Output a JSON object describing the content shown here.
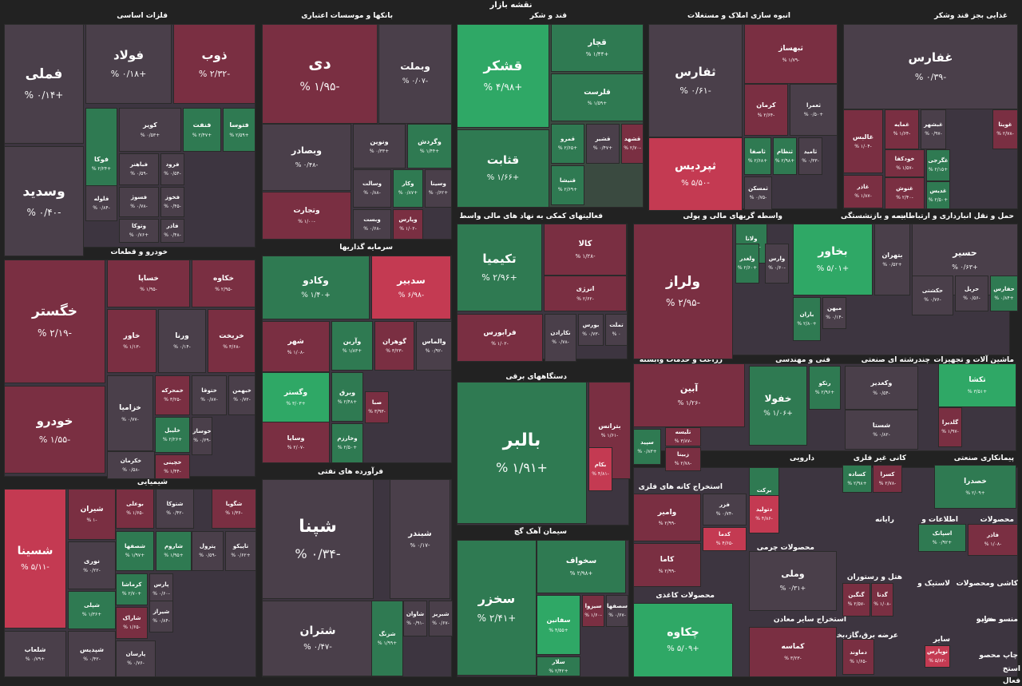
{
  "title": "نقشه بازار",
  "colors": {
    "up_strong": "#2fa866",
    "up": "#2f7a52",
    "neutral": "#4a3f4a",
    "down": "#7a2f42",
    "down_strong": "#c43a52"
  },
  "sectors": [
    "فلزات اساسی",
    "بانکها و موسسات اعتباری",
    "قند و شکر",
    "انبوه سازی املاک و مستغلات",
    "غذایی بجز قند وشکر",
    "خودرو و قطعات",
    "سرمایه گذاریها",
    "فعالیتهای کمکی به نهاد های مالی واسط",
    "واسطه گریهای مالی و پولی",
    "بیمه و بازنشستگی",
    "حمل و نقل انبارداری و ارتباطات",
    "دستگاههای برقی",
    "زراعت و خدمات وابسته",
    "فنی و مهندسی",
    "چندرشته ای صنعتی",
    "ماشین آلات و تجهیزات",
    "شیمیایی",
    "فرآورده های نفتی",
    "سیمان آهک گچ",
    "استخراج کانه های فلزی",
    "دارویی",
    "کانی غیر فلزی",
    "پیمانکاری صنعتی",
    "رایانه",
    "اطلاعات و",
    "محصولات",
    "محصولات چرمی",
    "هتل و رستوران",
    "لاستیک و",
    "محصولات",
    "کاشی و",
    "محصولات کاغذی",
    "استخراج سایر معادن",
    "عرضه برق،گاز،بخار و آب",
    "منسو مخابر",
    "خرده",
    "سایر",
    "چاپ محصو",
    "استخ",
    "فعال"
  ],
  "tiles": [
    {
      "name": "فملی",
      "change": "+۰/۱۴ %"
    },
    {
      "name": "وسدید",
      "change": "-۰/۴۰ %"
    },
    {
      "name": "فولاد",
      "change": "+۰/۱۸ %"
    },
    {
      "name": "ذوب",
      "change": "-۲/۳۲ %"
    },
    {
      "name": "فوکا",
      "change": "+۲/۲۴ %"
    },
    {
      "name": "کویر",
      "change": "+۰/۵۳ %"
    },
    {
      "name": "فنفت",
      "change": "+۲/۴۷ %"
    },
    {
      "name": "فتوسا",
      "change": "+۲/۵۹ %"
    },
    {
      "name": "فباهنر",
      "change": "-۰/۵۹ %"
    },
    {
      "name": "فرود",
      "change": "-۰/۵۴ %"
    },
    {
      "name": "فلوله",
      "change": "-۰/۸۴ %"
    },
    {
      "name": "فسوژ",
      "change": "-۰/۷۸ %"
    },
    {
      "name": "فخوز",
      "change": "-۰/۴۵ %"
    },
    {
      "name": "وتوکا",
      "change": "+۰/۷۶ %"
    },
    {
      "name": "فاذر",
      "change": "-۰/۴۸ %"
    },
    {
      "name": "دی",
      "change": "-۱/۹۵ %"
    },
    {
      "name": "وبملت",
      "change": "-۰/۰۷ %"
    },
    {
      "name": "وبصادر",
      "change": "-۰/۴۸ %"
    },
    {
      "name": "ونوین",
      "change": "+۰/۳۳ %"
    },
    {
      "name": "وگردش",
      "change": "+۱/۴۴ %"
    },
    {
      "name": "وتجارت",
      "change": "-۱/۰۰ %"
    },
    {
      "name": "وسالت",
      "change": "-۰/۸۸ %"
    },
    {
      "name": "وکار",
      "change": "+۰/۸۷ %"
    },
    {
      "name": "وسینا",
      "change": "+۰/۶۲ %"
    },
    {
      "name": "وبست",
      "change": "-۰/۶۸ %"
    },
    {
      "name": "وپارس",
      "change": "-۱/۰۲ %"
    },
    {
      "name": "قشکر",
      "change": "+۴/۹۸ %"
    },
    {
      "name": "قثابت",
      "change": "+۱/۶۶ %"
    },
    {
      "name": "قچار",
      "change": "+۱/۴۴ %"
    },
    {
      "name": "قلرست",
      "change": "+۱/۵۹ %"
    },
    {
      "name": "قمرو",
      "change": "+۲/۶۵ %"
    },
    {
      "name": "قشیر",
      "change": "+۰/۴۷ %"
    },
    {
      "name": "قشهد",
      "change": "-۲/۷۰ %"
    },
    {
      "name": "قنیشا",
      "change": "+۲/۶۹ %"
    },
    {
      "name": "ثفارس",
      "change": "-۰/۶۱ %"
    },
    {
      "name": "ثبهساز",
      "change": "-۱/۷۹ %"
    },
    {
      "name": "کرمان",
      "change": "-۲/۶۴ %"
    },
    {
      "name": "ثعمرا",
      "change": "+۰/۵۰ %"
    },
    {
      "name": "ثپردیس",
      "change": "-۵/۵۰ %"
    },
    {
      "name": "ثاصفا",
      "change": "+۲/۶۸ %"
    },
    {
      "name": "ثنظام",
      "change": "+۲/۹۸ %"
    },
    {
      "name": "ثامید",
      "change": "-۰/۳۳ %"
    },
    {
      "name": "ثمسکن",
      "change": "-۰/۷۵ %"
    },
    {
      "name": "غفارس",
      "change": "-۰/۳۹ %"
    },
    {
      "name": "غدانه",
      "change": "-۳/۰۱ %"
    },
    {
      "name": "غمایه",
      "change": "-۱/۶۴ %"
    },
    {
      "name": "غبشهر",
      "change": "-۰/۹۷ %"
    },
    {
      "name": "غویتا",
      "change": "-۲/۷۸ %"
    },
    {
      "name": "غالبس",
      "change": "-۱/۰۴ %"
    },
    {
      "name": "خودکفا",
      "change": "-۱/۵۷ %"
    },
    {
      "name": "غگرجی",
      "change": "+۲/۱۵ %"
    },
    {
      "name": "غاذر",
      "change": "-۱/۸۷ %"
    },
    {
      "name": "غنوش",
      "change": "-۲/۴۰ %"
    },
    {
      "name": "غدیس",
      "change": "+۲/۵۰ %"
    },
    {
      "name": "خگستر",
      "change": "-۲/۱۹ %"
    },
    {
      "name": "خودرو",
      "change": "-۱/۵۵ %"
    },
    {
      "name": "خساپا",
      "change": "-۱/۹۵ %"
    },
    {
      "name": "خکاوه",
      "change": "-۲/۹۵ %"
    },
    {
      "name": "خاور",
      "change": "-۱/۱۳ %"
    },
    {
      "name": "ورنا",
      "change": "-۰/۱۴ %"
    },
    {
      "name": "خریخت",
      "change": "-۳/۶۸ %"
    },
    {
      "name": "خزامیا",
      "change": "-۰/۷۷ %"
    },
    {
      "name": "خمحرکه",
      "change": "-۳/۲۵ %"
    },
    {
      "name": "ختوقا",
      "change": "-۰/۸۷ %"
    },
    {
      "name": "خبهمن",
      "change": "-۰/۷۲ %"
    },
    {
      "name": "خلیبل",
      "change": "+۲/۲۶ %"
    },
    {
      "name": "خکرمان",
      "change": "-۰/۵۸ %"
    },
    {
      "name": "خچینی",
      "change": "-۱/۴۴ %"
    },
    {
      "name": "خوساز",
      "change": "-۰/۶۹ %"
    },
    {
      "name": "وکادو",
      "change": "+۱/۴۰ %"
    },
    {
      "name": "سدبیر",
      "change": "-۶/۹۸ %"
    },
    {
      "name": "شهر",
      "change": "-۱/۰۸ %"
    },
    {
      "name": "وآرین",
      "change": "+۱/۸۳ %"
    },
    {
      "name": "گوهران",
      "change": "-۳/۲۳ %"
    },
    {
      "name": "والماس",
      "change": "-۰/۹۲ %"
    },
    {
      "name": "وگستر",
      "change": "+۳/۰۳ %"
    },
    {
      "name": "وبرق",
      "change": "+۲/۴۸ %"
    },
    {
      "name": "صبا",
      "change": "-۳/۹۳ %"
    },
    {
      "name": "وخارزم",
      "change": "+۲/۵۰ %"
    },
    {
      "name": "وسایا",
      "change": "-۲/۰۷ %"
    },
    {
      "name": "تکیمیا",
      "change": "+۲/۹۶ %"
    },
    {
      "name": "کالا",
      "change": "-۱/۲۸ %"
    },
    {
      "name": "انرژی",
      "change": "-۲/۶۲ %"
    },
    {
      "name": "فرابورس",
      "change": "-۱/۰۲ %"
    },
    {
      "name": "نکارادن",
      "change": "-۰/۷۸ %"
    },
    {
      "name": "بورس",
      "change": "-۰/۷۳ %"
    },
    {
      "name": "تملت",
      "change": "۰ %"
    },
    {
      "name": "ولراز",
      "change": "-۲/۹۵ %"
    },
    {
      "name": "ولانا",
      "change": "+۲/۱۷ %"
    },
    {
      "name": "ولغدر",
      "change": "+۲/۶۰ %"
    },
    {
      "name": "وارس",
      "change": "-۰/۶۰ %"
    },
    {
      "name": "بخاور",
      "change": "+۵/۰۱ %"
    },
    {
      "name": "بتهران",
      "change": "+۰/۵۲ %"
    },
    {
      "name": "باران",
      "change": "+۲/۸۰ %"
    },
    {
      "name": "میهن",
      "change": "-۰/۱۴ %"
    },
    {
      "name": "حسیر",
      "change": "+۰/۶۳ %"
    },
    {
      "name": "حکشتی",
      "change": "-۰/۷۶ %"
    },
    {
      "name": "حریل",
      "change": "-۰/۵۶ %"
    },
    {
      "name": "حفارس",
      "change": "+۰/۸۴ %"
    },
    {
      "name": "بالبر",
      "change": "+۱/۹۱ %"
    },
    {
      "name": "بترانس",
      "change": "-۱/۶۱ %"
    },
    {
      "name": "بکام",
      "change": "-۴/۸۱ %"
    },
    {
      "name": "آبین",
      "change": "-۱/۲۶ %"
    },
    {
      "name": "تلیسه",
      "change": "-۳/۸۷ %"
    },
    {
      "name": "سپید",
      "change": "+۰/۸۳ %"
    },
    {
      "name": "زبینا",
      "change": "-۲/۷۸ %"
    },
    {
      "name": "خفولا",
      "change": "+۱/۰۶ %"
    },
    {
      "name": "رتکو",
      "change": "+۲/۹۶ %"
    },
    {
      "name": "وکغدیر",
      "change": "-۰/۵۴ %"
    },
    {
      "name": "شستا",
      "change": "-۰/۸۲ %"
    },
    {
      "name": "تکشا",
      "change": "+۳/۵۱ %"
    },
    {
      "name": "گلدیرا",
      "change": "-۱/۹۷ %"
    },
    {
      "name": "شسینا",
      "change": "-۵/۱۱ %"
    },
    {
      "name": "شیران",
      "change": "-۱ %"
    },
    {
      "name": "بوعلی",
      "change": "-۱/۶۵ %"
    },
    {
      "name": "شتوکا",
      "change": "-۰/۴۲ %"
    },
    {
      "name": "شگویا",
      "change": "-۱/۳۶ %"
    },
    {
      "name": "نوری",
      "change": "-۰/۲۲ %"
    },
    {
      "name": "شصفها",
      "change": "+۱/۹۷ %"
    },
    {
      "name": "شاروم",
      "change": "+۱/۹۵ %"
    },
    {
      "name": "پترول",
      "change": "-۰/۵۹ %"
    },
    {
      "name": "تاپیکو",
      "change": "+۰/۶۲ %"
    },
    {
      "name": "شپلی",
      "change": "+۱/۳۶ %"
    },
    {
      "name": "کرماشا",
      "change": "+۲/۷۰ %"
    },
    {
      "name": "پارس",
      "change": "-۰/۶۰ %"
    },
    {
      "name": "شیراز",
      "change": "-۰/۸۴ %"
    },
    {
      "name": "شاراک",
      "change": "-۱/۶۵ %"
    },
    {
      "name": "شلعاب",
      "change": "+۰/۷۹ %"
    },
    {
      "name": "شپدیس",
      "change": "-۰/۴۲ %"
    },
    {
      "name": "پارسان",
      "change": "-۰/۷۶ %"
    },
    {
      "name": "شپنا",
      "change": "-۰/۳۴ %"
    },
    {
      "name": "شبندر",
      "change": "-۰/۱۷ %"
    },
    {
      "name": "شتران",
      "change": "-۰/۴۷ %"
    },
    {
      "name": "شاوان",
      "change": "-۰/۹۱ %"
    },
    {
      "name": "شبریز",
      "change": "-۰/۶۷ %"
    },
    {
      "name": "شزنگ",
      "change": "+۱/۹۹ %"
    },
    {
      "name": "سخزر",
      "change": "+۲/۴۱ %"
    },
    {
      "name": "سخواف",
      "change": "+۲/۹۸ %"
    },
    {
      "name": "سفانین",
      "change": "+۴/۵۵ %"
    },
    {
      "name": "سیزوا",
      "change": "-۱/۶۰ %"
    },
    {
      "name": "سصفها",
      "change": "-۰/۶۷ %"
    },
    {
      "name": "سلار",
      "change": "+۲/۴۲ %"
    },
    {
      "name": "وامیر",
      "change": "-۲/۹۹ %"
    },
    {
      "name": "فزر",
      "change": "-۰/۷۴ %"
    },
    {
      "name": "کدما",
      "change": "-۴/۶۵ %"
    },
    {
      "name": "کاما",
      "change": "-۲/۹۹ %"
    },
    {
      "name": "برکت",
      "change": "+۰/۹۲ %"
    },
    {
      "name": "دتولید",
      "change": "-۴/۸۶ %"
    },
    {
      "name": "کساده",
      "change": "+۲/۹۸ %"
    },
    {
      "name": "کسرا",
      "change": "-۲/۷۸ %"
    },
    {
      "name": "خصدرا",
      "change": "+۲/۰۹ %"
    },
    {
      "name": "اسپانک",
      "change": "+۰/۹۲ %"
    },
    {
      "name": "فاذر",
      "change": "-۱/۰۸ %"
    },
    {
      "name": "وملی",
      "change": "+۰/۳۱ %"
    },
    {
      "name": "چکاوه",
      "change": "+۵/۰۹ %"
    },
    {
      "name": "کماسه",
      "change": "-۳/۲۳ %"
    },
    {
      "name": "گنگین",
      "change": "-۲/۵۷ %"
    },
    {
      "name": "گدنا",
      "change": "-۱/۰۸ %"
    },
    {
      "name": "دماوند",
      "change": "-۱/۶۵ %"
    },
    {
      "name": "نوپارس",
      "change": "-۵/۸۲ %"
    }
  ]
}
